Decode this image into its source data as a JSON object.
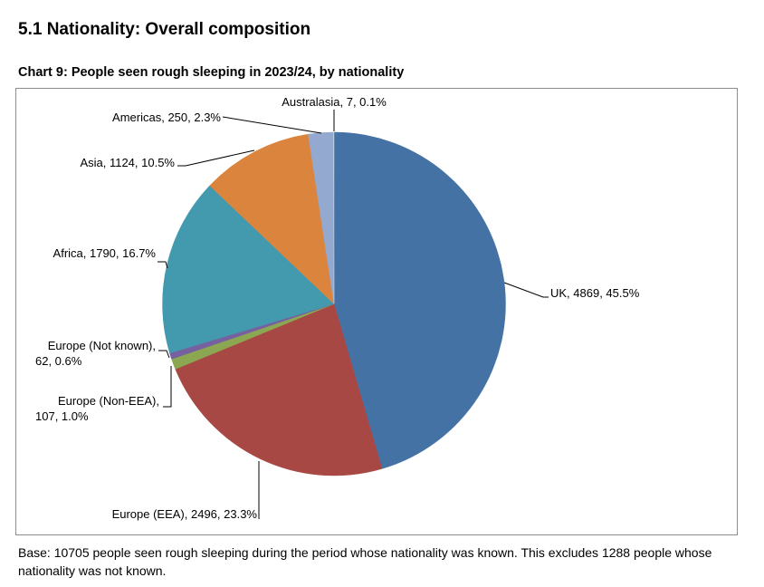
{
  "section": {
    "title": "5.1 Nationality: Overall composition"
  },
  "note": "Base: 10705 people seen rough sleeping during the period whose nationality was known. This excludes 1288 people whose nationality was not known.",
  "chart_data": {
    "type": "pie",
    "title": "Chart 9: People seen rough sleeping in 2023/24, by nationality",
    "total": 10705,
    "start": "12 o'clock",
    "direction": "clockwise",
    "legend": "none (data labels with leader lines)",
    "slices": [
      {
        "name": "UK",
        "value": 4869,
        "percent": 45.5,
        "color": "#4472A4",
        "label_lines": [
          "UK, 4869, 45.5%"
        ]
      },
      {
        "name": "Europe (EEA)",
        "value": 2496,
        "percent": 23.3,
        "color": "#A84845",
        "label_lines": [
          "Europe (EEA), 2496, 23.3%"
        ]
      },
      {
        "name": "Europe (Non-EEA)",
        "value": 107,
        "percent": 1.0,
        "color": "#8BA752",
        "label_lines": [
          "Europe (Non-EEA),",
          "107, 1.0%"
        ]
      },
      {
        "name": "Europe (Not known)",
        "value": 62,
        "percent": 0.6,
        "color": "#7660A0",
        "label_lines": [
          "Europe (Not known),",
          "62, 0.6%"
        ]
      },
      {
        "name": "Africa",
        "value": 1790,
        "percent": 16.7,
        "color": "#4399AD",
        "label_lines": [
          "Africa, 1790, 16.7%"
        ]
      },
      {
        "name": "Asia",
        "value": 1124,
        "percent": 10.5,
        "color": "#DB843D",
        "label_lines": [
          "Asia, 1124, 10.5%"
        ]
      },
      {
        "name": "Americas",
        "value": 250,
        "percent": 2.3,
        "color": "#93A9CF",
        "label_lines": [
          "Americas, 250, 2.3%"
        ]
      },
      {
        "name": "Australasia",
        "value": 7,
        "percent": 0.1,
        "color": "#B9CDE5",
        "label_lines": [
          "Australasia, 7, 0.1%"
        ]
      }
    ]
  }
}
